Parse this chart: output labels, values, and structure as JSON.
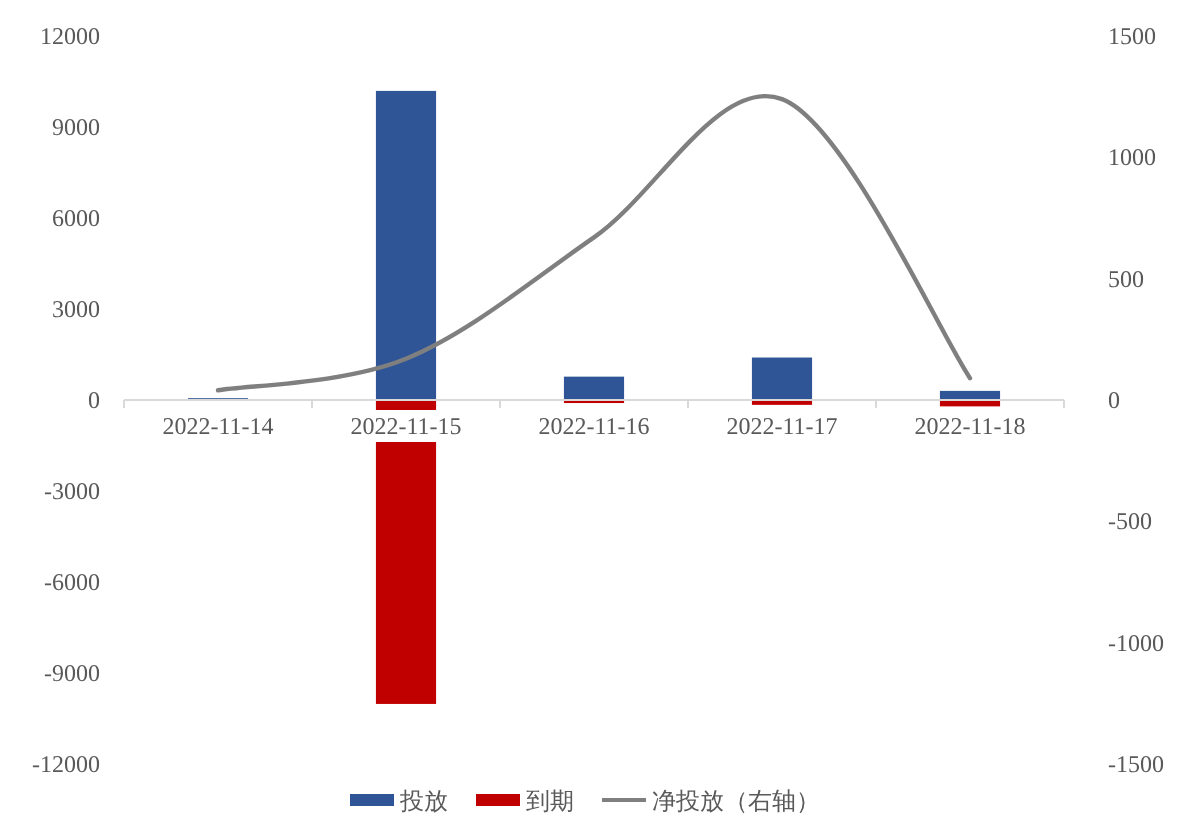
{
  "chart_data": {
    "type": "bar",
    "categories": [
      "2022-11-14",
      "2022-11-15",
      "2022-11-16",
      "2022-11-17",
      "2022-11-18"
    ],
    "series": [
      {
        "name": "投放",
        "color": "#2f5597",
        "values": [
          60,
          10190,
          770,
          1400,
          300
        ]
      },
      {
        "name": "到期",
        "color": "#c00000",
        "values": [
          -30,
          -10020,
          -100,
          -160,
          -210
        ]
      },
      {
        "name": "净投放（右轴）",
        "type": "line",
        "axis": "y2",
        "color": "#7f7f7f",
        "values": [
          40,
          170,
          670,
          1240,
          90
        ]
      }
    ],
    "ylim": [
      -12000,
      12000
    ],
    "yticks": [
      -12000,
      -9000,
      -6000,
      -3000,
      0,
      3000,
      6000,
      9000,
      12000
    ],
    "y2lim": [
      -1500,
      1500
    ],
    "y2ticks": [
      -1500,
      -1000,
      -500,
      0,
      500,
      1000,
      1500
    ],
    "legend": "bottom",
    "stacked": true,
    "grid": false
  }
}
